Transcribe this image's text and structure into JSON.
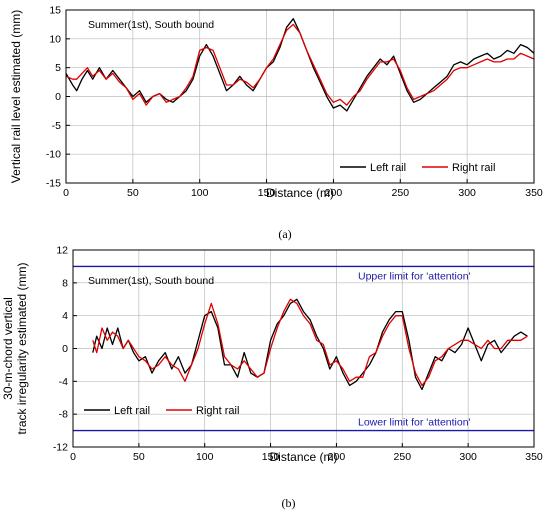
{
  "chart_data": [
    {
      "type": "line",
      "panel_label": "(a)",
      "annotation": "Summer(1st), South bound",
      "xlabel": "Distance (m)",
      "ylabel": "Vertical rail level estimated (mm)",
      "xlim": [
        0,
        350
      ],
      "ylim": [
        -15,
        15
      ],
      "xticks": [
        0,
        50,
        100,
        150,
        200,
        250,
        300,
        350
      ],
      "yticks": [
        -15,
        -10,
        -5,
        0,
        5,
        10,
        15
      ],
      "grid": true,
      "legend_position": "bottom-right",
      "series": [
        {
          "name": "Left rail",
          "color": "#000000",
          "x": [
            0,
            5,
            8,
            12,
            16,
            20,
            25,
            30,
            35,
            40,
            45,
            50,
            55,
            60,
            65,
            70,
            75,
            80,
            85,
            90,
            95,
            100,
            105,
            110,
            115,
            120,
            125,
            130,
            135,
            140,
            145,
            150,
            155,
            160,
            165,
            170,
            175,
            180,
            185,
            190,
            195,
            200,
            205,
            210,
            215,
            220,
            225,
            230,
            235,
            240,
            245,
            250,
            255,
            260,
            265,
            270,
            275,
            280,
            285,
            290,
            295,
            300,
            305,
            310,
            315,
            320,
            325,
            330,
            335,
            340,
            345,
            350
          ],
          "values": [
            4,
            2,
            1,
            3,
            4.5,
            3,
            5,
            3,
            4.5,
            3,
            1.5,
            0,
            1,
            -1,
            0,
            0.5,
            -0.5,
            -1,
            0,
            1,
            3,
            7,
            9,
            7,
            4,
            1,
            2,
            3.5,
            2,
            1,
            3,
            5,
            6,
            8.5,
            12,
            13.5,
            11,
            8,
            5,
            2.5,
            0,
            -2,
            -1.5,
            -2.5,
            -0.5,
            1.5,
            3.5,
            5,
            6.5,
            5.5,
            7,
            4,
            1,
            -1,
            -0.5,
            0.5,
            1.5,
            2.5,
            3.5,
            5.5,
            6,
            5.5,
            6.5,
            7,
            7.5,
            6.5,
            7,
            8,
            7.5,
            9,
            8.5,
            7.5
          ]
        },
        {
          "name": "Right rail",
          "color": "#e00000",
          "x": [
            0,
            5,
            8,
            12,
            16,
            20,
            25,
            30,
            35,
            40,
            45,
            50,
            55,
            60,
            65,
            70,
            75,
            80,
            85,
            90,
            95,
            100,
            105,
            110,
            115,
            120,
            125,
            130,
            135,
            140,
            145,
            150,
            155,
            160,
            165,
            170,
            175,
            180,
            185,
            190,
            195,
            200,
            205,
            210,
            215,
            220,
            225,
            230,
            235,
            240,
            245,
            250,
            255,
            260,
            265,
            270,
            275,
            280,
            285,
            290,
            295,
            300,
            305,
            310,
            315,
            320,
            325,
            330,
            335,
            340,
            345,
            350
          ],
          "values": [
            3.5,
            3,
            3,
            4,
            5,
            3.5,
            4.5,
            3,
            4,
            2.5,
            1.5,
            -0.5,
            0.5,
            -1.5,
            0,
            0.5,
            -1,
            -0.5,
            0,
            1.5,
            3.5,
            8,
            8.5,
            8,
            5,
            2,
            2,
            3,
            2.5,
            1.5,
            3,
            5,
            6.5,
            9,
            11.5,
            12.5,
            11,
            8,
            5.5,
            3,
            0.5,
            -1,
            -0.5,
            -1.5,
            0,
            1,
            3,
            4.5,
            6,
            6,
            6.5,
            4.5,
            1.5,
            -0.5,
            0,
            0.5,
            1,
            2,
            3,
            4.5,
            5,
            5,
            5.5,
            6,
            6.5,
            6,
            6,
            6.5,
            6.5,
            7.5,
            7,
            6.5
          ]
        }
      ]
    },
    {
      "type": "line",
      "panel_label": "(b)",
      "annotation": "Summer(1st), South bound",
      "xlabel": "Distance (m)",
      "ylabel_lines": [
        "30-m-chord vertical",
        "track irregularity estimated (mm)"
      ],
      "xlim": [
        0,
        350
      ],
      "ylim": [
        -12,
        12
      ],
      "xticks": [
        0,
        50,
        100,
        150,
        200,
        250,
        300,
        350
      ],
      "yticks": [
        -12,
        -8,
        -4,
        0,
        4,
        8,
        12
      ],
      "grid": true,
      "legend_position": "bottom-left",
      "limits": [
        {
          "label": "Upper limit for 'attention'",
          "value": 10,
          "color": "#1a1aa8"
        },
        {
          "label": "Lower limit for 'attention'",
          "value": -10,
          "color": "#1a1aa8"
        }
      ],
      "series": [
        {
          "name": "Left rail",
          "color": "#000000",
          "x": [
            15,
            18,
            22,
            26,
            30,
            34,
            38,
            42,
            46,
            50,
            55,
            60,
            65,
            70,
            75,
            80,
            85,
            90,
            95,
            100,
            105,
            110,
            115,
            120,
            125,
            130,
            135,
            140,
            145,
            150,
            155,
            160,
            165,
            170,
            175,
            180,
            185,
            190,
            195,
            200,
            205,
            210,
            215,
            220,
            225,
            230,
            235,
            240,
            245,
            250,
            255,
            260,
            265,
            270,
            275,
            280,
            285,
            290,
            295,
            300,
            305,
            310,
            315,
            320,
            325,
            330,
            335,
            340,
            345
          ],
          "values": [
            -0.5,
            1.5,
            0,
            2.5,
            0.5,
            2.5,
            0,
            1,
            -0.5,
            -1.5,
            -1,
            -3,
            -1.5,
            -0.5,
            -2.5,
            -1,
            -3,
            -2,
            1,
            4,
            4.5,
            2.5,
            -2,
            -2,
            -3.5,
            -0.5,
            -3,
            -3.5,
            -3,
            1,
            3,
            4,
            5.5,
            6,
            4.5,
            3.5,
            1.5,
            0,
            -2.5,
            -1,
            -3,
            -4.5,
            -4,
            -3,
            -2,
            -0.5,
            2,
            3.5,
            4.5,
            4.5,
            1,
            -3.5,
            -5,
            -3,
            -1,
            -1.5,
            0,
            -0.5,
            0.5,
            2.5,
            0.5,
            -1.5,
            0.5,
            1,
            -0.5,
            0.5,
            1.5,
            2,
            1.5
          ]
        },
        {
          "name": "Right rail",
          "color": "#e00000",
          "x": [
            15,
            18,
            22,
            26,
            30,
            34,
            38,
            42,
            46,
            50,
            55,
            60,
            65,
            70,
            75,
            80,
            85,
            90,
            95,
            100,
            105,
            110,
            115,
            120,
            125,
            130,
            135,
            140,
            145,
            150,
            155,
            160,
            165,
            170,
            175,
            180,
            185,
            190,
            195,
            200,
            205,
            210,
            215,
            220,
            225,
            230,
            235,
            240,
            245,
            250,
            255,
            260,
            265,
            270,
            275,
            280,
            285,
            290,
            295,
            300,
            305,
            310,
            315,
            320,
            325,
            330,
            335,
            340,
            345
          ],
          "values": [
            1,
            -0.5,
            2.5,
            1,
            2,
            1.5,
            0,
            1,
            0,
            -1,
            -1.5,
            -2.5,
            -2,
            -1,
            -2,
            -2.5,
            -4,
            -2,
            0,
            3,
            5.5,
            3,
            -1,
            -2,
            -2.5,
            -1.5,
            -2.5,
            -3.5,
            -3,
            0,
            2.5,
            4.5,
            6,
            5.5,
            4,
            3,
            1,
            0.5,
            -2,
            -1.5,
            -2.5,
            -4,
            -3.5,
            -3.5,
            -1,
            -0.5,
            1.5,
            3,
            4,
            4,
            0,
            -3,
            -4.5,
            -3.5,
            -1.5,
            -1,
            0,
            0.5,
            1,
            1,
            0.5,
            0,
            1,
            0,
            0,
            1,
            1,
            1,
            1.5
          ]
        }
      ]
    }
  ]
}
